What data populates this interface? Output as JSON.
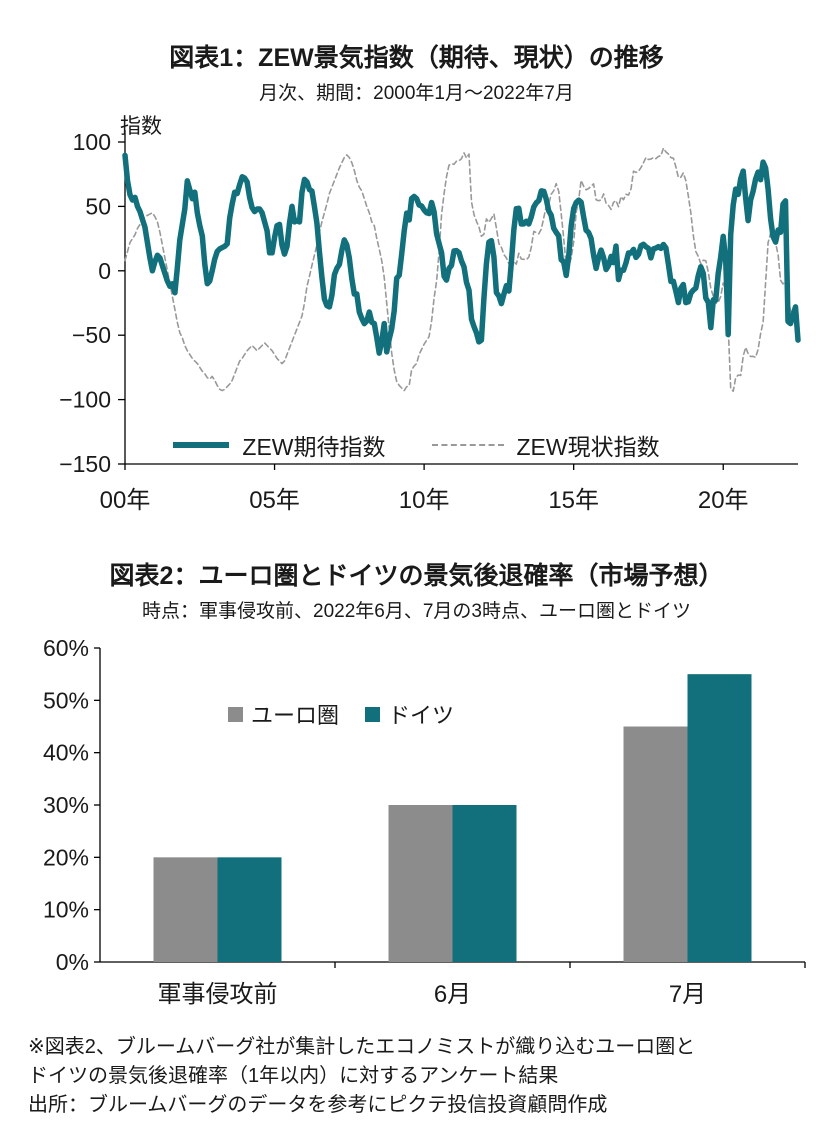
{
  "notes": [
    "※図表2、ブルームバーグ社が集計したエコノミストが織り込むユーロ圏と",
    "ドイツの景気後退確率（1年以内）に対するアンケート結果",
    "出所：ブルームバーグのデータを参考にピクテ投信投資顧問作成"
  ],
  "chart_data": [
    {
      "type": "line",
      "title": "図表1：ZEW景気指数（期待、現状）の推移",
      "subtitle": "月次、期間：2000年1月～2022年7月",
      "y_axis_title": "指数",
      "x_start": "2000-01",
      "x_end": "2022-07",
      "frequency": "monthly",
      "ylim": [
        -150,
        100
      ],
      "grid": false,
      "legend_position": "bottom-inside",
      "axis_color": "#000000",
      "y_ticks": [
        {
          "value": 100,
          "label": "100"
        },
        {
          "value": 50,
          "label": "50"
        },
        {
          "value": 0,
          "label": "0"
        },
        {
          "value": -50,
          "label": "−50"
        },
        {
          "value": -100,
          "label": "−100"
        },
        {
          "value": -150,
          "label": "−150"
        }
      ],
      "x_ticks": [
        {
          "month_index": 0,
          "label": "00年"
        },
        {
          "month_index": 60,
          "label": "05年"
        },
        {
          "month_index": 120,
          "label": "10年"
        },
        {
          "month_index": 180,
          "label": "15年"
        },
        {
          "month_index": 240,
          "label": "20年"
        }
      ],
      "series": [
        {
          "name": "ZEW期待指数",
          "style": "solid-thick",
          "color": "#11707b",
          "values": [
            89.6,
            70,
            59,
            55,
            57,
            50,
            46,
            40,
            34,
            22,
            10,
            0,
            7,
            12,
            10,
            4,
            -2,
            -8,
            -12,
            -10,
            -17,
            2,
            24,
            36,
            48,
            69.8,
            63,
            56,
            61,
            45,
            35,
            27,
            5,
            -10,
            -8,
            0,
            9,
            15,
            17,
            18,
            19,
            21,
            41,
            52,
            61,
            60,
            67,
            73,
            72,
            69,
            57,
            49,
            46,
            48,
            48,
            45,
            38,
            31,
            14,
            14,
            26,
            35,
            36,
            20,
            13,
            19,
            37,
            50,
            38,
            39,
            38,
            61,
            71,
            69,
            63,
            62,
            50,
            37,
            15,
            -5,
            -22,
            -27,
            -28,
            -19,
            -3,
            2,
            5,
            16,
            24,
            20,
            10,
            -6,
            -18,
            -18,
            -32,
            -37,
            -41,
            -39,
            -32,
            -40,
            -41,
            -52,
            -63.9,
            -55,
            -41,
            -63,
            -53,
            -45,
            -31,
            -5.8,
            -3.5,
            13,
            31,
            44.8,
            39.5,
            56.1,
            57.7,
            56,
            51.1,
            50.4,
            47.2,
            45.1,
            44.5,
            53,
            45.8,
            28.7,
            21.2,
            14,
            -4.3,
            -7.2,
            1.8,
            4.3,
            15.4,
            15.7,
            14.1,
            7.6,
            3.1,
            -9,
            -15.1,
            -37.6,
            -43.3,
            -48.3,
            -55.2,
            -53.8,
            -21.6,
            5.4,
            22.3,
            23.4,
            10.8,
            -16.9,
            -19.6,
            -25.5,
            -18.2,
            -11.5,
            -15.7,
            6.9,
            31.5,
            48.2,
            48.5,
            36.3,
            36.4,
            38.5,
            36.3,
            42,
            49.6,
            52.8,
            54.6,
            62,
            61.7,
            55.7,
            46.6,
            43.2,
            33.1,
            29.8,
            27.1,
            8.6,
            6.9,
            -3.6,
            11.5,
            34.9,
            48.4,
            53,
            54.8,
            53.3,
            41.9,
            31.5,
            29.7,
            25,
            12.1,
            1.9,
            10.4,
            16.1,
            10.2,
            1,
            4.3,
            11.2,
            6.4,
            19.2,
            -6.8,
            0.5,
            0.5,
            6.2,
            13.8,
            13.8,
            16.6,
            10.4,
            12.8,
            19.5,
            20.6,
            18.6,
            17.5,
            10,
            17,
            17.6,
            18.7,
            17.4,
            20.4,
            17.8,
            5.1,
            -8.2,
            -8.2,
            -16.1,
            -24.7,
            -13.7,
            -10.6,
            -24.7,
            -24.1,
            -17.5,
            -15,
            -13.4,
            -3.6,
            3.1,
            -2.1,
            -21.1,
            -24.5,
            -44.1,
            -22.5,
            -22.8,
            -2.1,
            10.7,
            26.7,
            8.7,
            -49.5,
            28.2,
            51,
            63.4,
            59.3,
            71.5,
            77.4,
            56.1,
            39,
            55,
            61.8,
            71.2,
            76.6,
            70.7,
            84.4,
            79.8,
            63.3,
            40.4,
            26.5,
            22.3,
            31.7,
            29.9,
            51.7,
            54.3,
            -39.3,
            -41,
            -34.3,
            -28,
            -53.8
          ]
        },
        {
          "name": "ZEW現状指数",
          "style": "dashed",
          "color": "#999999",
          "values": [
            8,
            15,
            22,
            25,
            28,
            33,
            36,
            40,
            42,
            43,
            44,
            45,
            42,
            38,
            30,
            20,
            10,
            0,
            -10,
            -20,
            -30,
            -40,
            -48,
            -52,
            -58,
            -62,
            -65,
            -68,
            -70,
            -72,
            -75,
            -78,
            -80,
            -83,
            -84,
            -82,
            -85,
            -89,
            -92,
            -93,
            -92,
            -90,
            -88,
            -85,
            -80,
            -75,
            -70,
            -68,
            -65,
            -62,
            -60,
            -58,
            -60,
            -62,
            -60,
            -58,
            -56,
            -58,
            -60,
            -62,
            -65,
            -68,
            -70,
            -72,
            -70,
            -65,
            -60,
            -55,
            -50,
            -45,
            -40,
            -35,
            -25,
            -12,
            -4,
            4,
            12,
            20,
            30,
            38,
            45,
            52,
            60,
            65,
            70,
            75,
            80,
            84,
            88,
            90,
            88,
            84,
            78,
            70,
            65,
            62,
            56,
            50,
            45,
            38,
            35,
            25,
            17,
            8,
            -5,
            -25,
            -45,
            -64,
            -77,
            -86,
            -89,
            -91,
            -93,
            -90,
            -89,
            -77,
            -74,
            -72,
            -65,
            -61,
            -57,
            -54,
            -51,
            -39,
            -21,
            -8,
            15,
            44,
            60,
            73,
            82,
            83,
            82.8,
            85.2,
            85.4,
            87.1,
            91.5,
            87.6,
            90.6,
            53.5,
            43.6,
            38.4,
            34.2,
            26.8,
            28.4,
            40.3,
            37.6,
            40.7,
            44.1,
            33.2,
            21.1,
            18.2,
            12.6,
            10,
            5.4,
            5.7,
            7.1,
            5.2,
            13.6,
            9.2,
            8.9,
            8.6,
            10.6,
            18.3,
            30.6,
            29.7,
            28.7,
            32.4,
            41.2,
            50,
            51.3,
            59.5,
            62.1,
            67.7,
            61.8,
            44.3,
            25.4,
            3.2,
            3.3,
            10,
            22.4,
            45.5,
            55.1,
            70.2,
            65.7,
            62.9,
            63.9,
            65.7,
            67.5,
            55.2,
            54.4,
            55,
            59.7,
            52.3,
            50.7,
            47.7,
            53.1,
            54.5,
            49.8,
            57.6,
            55.1,
            59.5,
            58.8,
            63.5,
            77.3,
            76.4,
            77.3,
            80.1,
            83.9,
            88,
            86.4,
            86.7,
            87.9,
            87,
            88.8,
            89.3,
            95.2,
            92.3,
            90.7,
            87.9,
            87.4,
            80.6,
            72.4,
            72.6,
            76,
            70.1,
            58.2,
            45.3,
            27.6,
            15,
            11.1,
            5.5,
            8.2,
            7.8,
            -1.1,
            -13.5,
            -19.9,
            -25.3,
            -24.7,
            -19.9,
            -9.5,
            -15.7,
            -43.1,
            -91.5,
            -93.5,
            -83.1,
            -80.9,
            -81.3,
            -66.2,
            -59.5,
            -64.3,
            -66.5,
            -66.4,
            -67.2,
            -61,
            -48.8,
            -40.1,
            -9.1,
            21.9,
            29.3,
            31.9,
            21.6,
            12.5,
            -7.4,
            -10.2,
            -8.1,
            -21.4,
            -30.8,
            -36.5,
            -27.6,
            -45.8
          ]
        }
      ]
    },
    {
      "type": "bar",
      "title": "図表2：ユーロ圏とドイツの景気後退確率（市場予想）",
      "subtitle": "時点：軍事侵攻前、2022年6月、7月の3時点、ユーロ圏とドイツ",
      "categories": [
        "軍事侵攻前",
        "6月",
        "7月"
      ],
      "ylim": [
        0,
        60
      ],
      "unit": "%",
      "grid": false,
      "legend_position": "top-inside",
      "axis_color": "#000000",
      "y_ticks": [
        {
          "value": 60,
          "label": "60%"
        },
        {
          "value": 50,
          "label": "50%"
        },
        {
          "value": 40,
          "label": "40%"
        },
        {
          "value": 30,
          "label": "30%"
        },
        {
          "value": 20,
          "label": "20%"
        },
        {
          "value": 10,
          "label": "10%"
        },
        {
          "value": 0,
          "label": "0%"
        }
      ],
      "series": [
        {
          "name": "ユーロ圏",
          "color": "#8c8c8c",
          "values": [
            20,
            30,
            45
          ]
        },
        {
          "name": "ドイツ",
          "color": "#11707b",
          "values": [
            20,
            30,
            55
          ]
        }
      ]
    }
  ]
}
